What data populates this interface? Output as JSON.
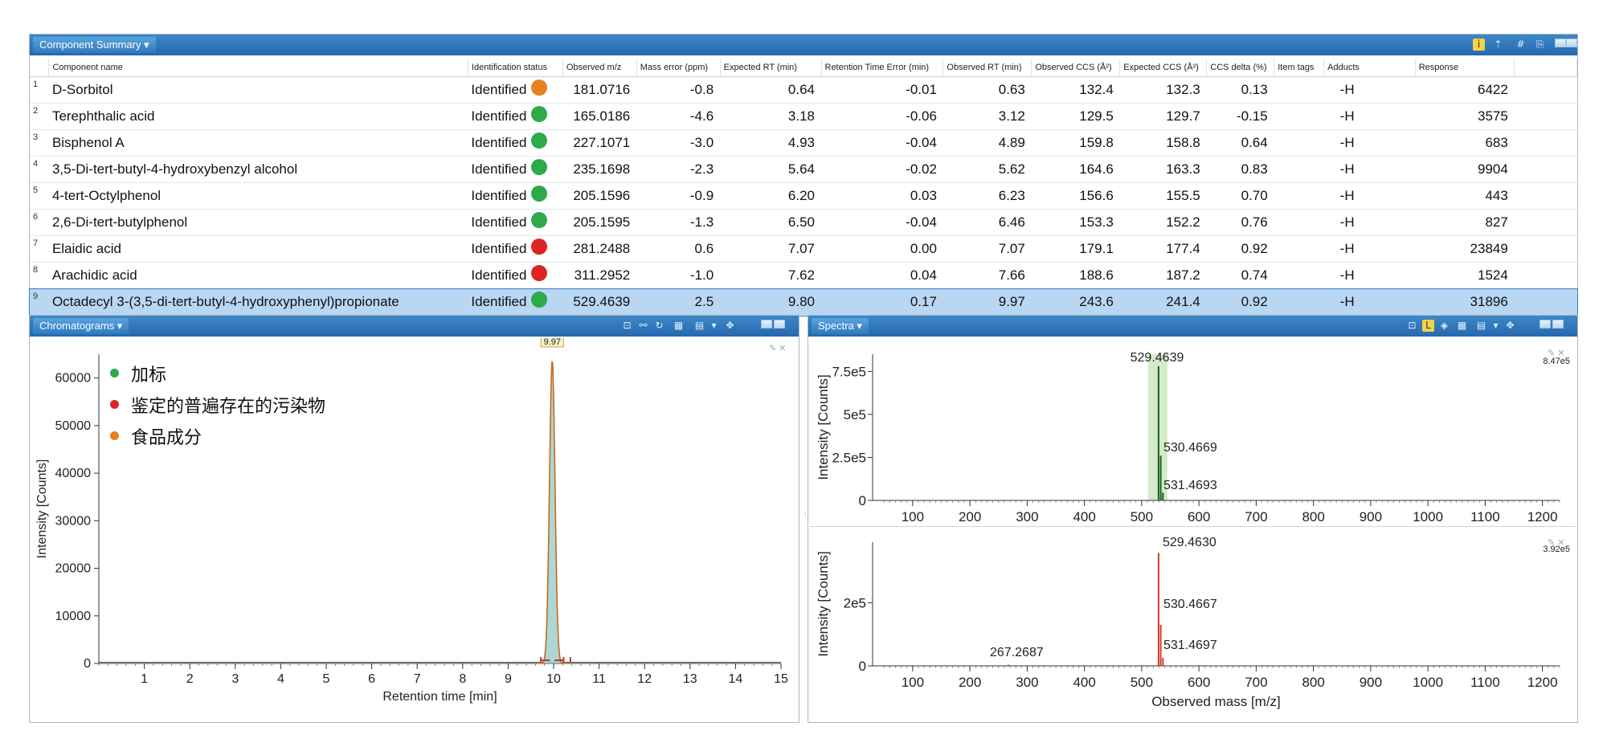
{
  "component_summary": {
    "title": "Component Summary ▾",
    "columns": [
      "Component name",
      "Identification status",
      "Observed m/z",
      "Mass error (ppm)",
      "Expected RT (min)",
      "Retention Time Error (min)",
      "Observed RT (min)",
      "Observed CCS (Å²)",
      "Expected CCS (Å²)",
      "CCS delta (%)",
      "Item tags",
      "Adducts",
      "Response"
    ],
    "rows": [
      {
        "idx": "1",
        "name": "D-Sorbitol",
        "status": "Identified",
        "dot": "#e8801e",
        "mz": "181.0716",
        "mass_error": "-0.8",
        "exp_rt": "0.64",
        "rt_error": "-0.01",
        "obs_rt": "0.63",
        "obs_ccs": "132.4",
        "exp_ccs": "132.3",
        "ccs_delta": "0.13",
        "tags": "",
        "adduct": "-H",
        "response": "6422"
      },
      {
        "idx": "2",
        "name": "Terephthalic acid",
        "status": "Identified",
        "dot": "#2eaa4a",
        "mz": "165.0186",
        "mass_error": "-4.6",
        "exp_rt": "3.18",
        "rt_error": "-0.06",
        "obs_rt": "3.12",
        "obs_ccs": "129.5",
        "exp_ccs": "129.7",
        "ccs_delta": "-0.15",
        "tags": "",
        "adduct": "-H",
        "response": "3575"
      },
      {
        "idx": "3",
        "name": "Bisphenol A",
        "status": "Identified",
        "dot": "#2eaa4a",
        "mz": "227.1071",
        "mass_error": "-3.0",
        "exp_rt": "4.93",
        "rt_error": "-0.04",
        "obs_rt": "4.89",
        "obs_ccs": "159.8",
        "exp_ccs": "158.8",
        "ccs_delta": "0.64",
        "tags": "",
        "adduct": "-H",
        "response": "683"
      },
      {
        "idx": "4",
        "name": "3,5-Di-tert-butyl-4-hydroxybenzyl alcohol",
        "status": "Identified",
        "dot": "#2eaa4a",
        "mz": "235.1698",
        "mass_error": "-2.3",
        "exp_rt": "5.64",
        "rt_error": "-0.02",
        "obs_rt": "5.62",
        "obs_ccs": "164.6",
        "exp_ccs": "163.3",
        "ccs_delta": "0.83",
        "tags": "",
        "adduct": "-H",
        "response": "9904"
      },
      {
        "idx": "5",
        "name": "4-tert-Octylphenol",
        "status": "Identified",
        "dot": "#2eaa4a",
        "mz": "205.1596",
        "mass_error": "-0.9",
        "exp_rt": "6.20",
        "rt_error": "0.03",
        "obs_rt": "6.23",
        "obs_ccs": "156.6",
        "exp_ccs": "155.5",
        "ccs_delta": "0.70",
        "tags": "",
        "adduct": "-H",
        "response": "443"
      },
      {
        "idx": "6",
        "name": "2,6-Di-tert-butylphenol",
        "status": "Identified",
        "dot": "#2eaa4a",
        "mz": "205.1595",
        "mass_error": "-1.3",
        "exp_rt": "6.50",
        "rt_error": "-0.04",
        "obs_rt": "6.46",
        "obs_ccs": "153.3",
        "exp_ccs": "152.2",
        "ccs_delta": "0.76",
        "tags": "",
        "adduct": "-H",
        "response": "827"
      },
      {
        "idx": "7",
        "name": "Elaidic acid",
        "status": "Identified",
        "dot": "#dd2323",
        "mz": "281.2488",
        "mass_error": "0.6",
        "exp_rt": "7.07",
        "rt_error": "0.00",
        "obs_rt": "7.07",
        "obs_ccs": "179.1",
        "exp_ccs": "177.4",
        "ccs_delta": "0.92",
        "tags": "",
        "adduct": "-H",
        "response": "23849"
      },
      {
        "idx": "8",
        "name": "Arachidic acid",
        "status": "Identified",
        "dot": "#dd2323",
        "mz": "311.2952",
        "mass_error": "-1.0",
        "exp_rt": "7.62",
        "rt_error": "0.04",
        "obs_rt": "7.66",
        "obs_ccs": "188.6",
        "exp_ccs": "187.2",
        "ccs_delta": "0.74",
        "tags": "",
        "adduct": "-H",
        "response": "1524"
      },
      {
        "idx": "9",
        "name": "Octadecyl 3-(3,5-di-tert-butyl-4-hydroxyphenyl)propionate",
        "status": "Identified",
        "dot": "#2eaa4a",
        "mz": "529.4639",
        "mass_error": "2.5",
        "exp_rt": "9.80",
        "rt_error": "0.17",
        "obs_rt": "9.97",
        "obs_ccs": "243.6",
        "exp_ccs": "241.4",
        "ccs_delta": "0.92",
        "tags": "",
        "adduct": "-H",
        "response": "31896",
        "selected": true
      }
    ]
  },
  "chromatograms": {
    "title": "Chromatograms ▾",
    "legend": [
      {
        "label": "加标",
        "color": "#2eaa4a"
      },
      {
        "label": "鉴定的普遍存在的污染物",
        "color": "#dd2323"
      },
      {
        "label": "食品成分",
        "color": "#e8801e"
      }
    ]
  },
  "spectra": {
    "title": "Spectra ▾"
  },
  "chart_data": [
    {
      "type": "line",
      "xlabel": "Retention time [min]",
      "ylabel": "Intensity [Counts]",
      "xlim": [
        0,
        15
      ],
      "ylim": [
        0,
        65000
      ],
      "xticks": [
        1,
        2,
        3,
        4,
        5,
        6,
        7,
        8,
        9,
        10,
        11,
        12,
        13,
        14,
        15
      ],
      "yticks": [
        0,
        10000,
        20000,
        30000,
        40000,
        50000,
        60000
      ],
      "peak": {
        "x": 9.97,
        "y": 63500,
        "label": "9.97"
      }
    },
    {
      "type": "bar",
      "xlabel": "",
      "ylabel": "Intensity [Counts]",
      "xlim": [
        30,
        1230
      ],
      "ylim": [
        0,
        850000
      ],
      "xticks": [
        100,
        200,
        300,
        400,
        500,
        600,
        700,
        800,
        900,
        1000,
        1100,
        1200
      ],
      "yticks": [
        {
          "v": 0,
          "label": "0"
        },
        {
          "v": 250000,
          "label": "2.5e5"
        },
        {
          "v": 500000,
          "label": "5e5"
        },
        {
          "v": 750000,
          "label": "7.5e5"
        }
      ],
      "max_label": "8.47e5",
      "peaks": [
        {
          "mz": 529.4639,
          "intensity": 780000,
          "label": "529.4639"
        },
        {
          "mz": 530.4669,
          "intensity": 260000,
          "label": "530.4669"
        },
        {
          "mz": 531.4693,
          "intensity": 45000,
          "label": "531.4693"
        }
      ]
    },
    {
      "type": "bar",
      "xlabel": "Observed mass [m/z]",
      "ylabel": "Intensity [Counts]",
      "xlim": [
        30,
        1230
      ],
      "ylim": [
        0,
        392000
      ],
      "xticks": [
        100,
        200,
        300,
        400,
        500,
        600,
        700,
        800,
        900,
        1000,
        1100,
        1200
      ],
      "yticks": [
        {
          "v": 0,
          "label": "0"
        },
        {
          "v": 200000,
          "label": "2e5"
        }
      ],
      "max_label": "3.92e5",
      "peaks": [
        {
          "mz": 529.463,
          "intensity": 358000,
          "label": "529.4630"
        },
        {
          "mz": 530.4667,
          "intensity": 130000,
          "label": "530.4667"
        },
        {
          "mz": 531.4697,
          "intensity": 25000,
          "label": "531.4697"
        },
        {
          "mz": 267.2687,
          "intensity": 4000,
          "label": "267.2687"
        }
      ]
    }
  ]
}
